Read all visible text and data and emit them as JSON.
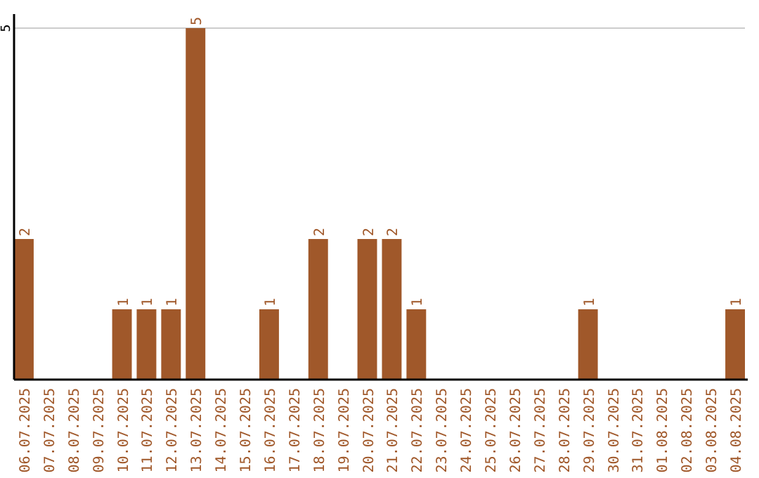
{
  "chart_data": {
    "type": "bar",
    "categories": [
      "06.07.2025",
      "07.07.2025",
      "08.07.2025",
      "09.07.2025",
      "10.07.2025",
      "11.07.2025",
      "12.07.2025",
      "13.07.2025",
      "14.07.2025",
      "15.07.2025",
      "16.07.2025",
      "17.07.2025",
      "18.07.2025",
      "19.07.2025",
      "20.07.2025",
      "21.07.2025",
      "22.07.2025",
      "23.07.2025",
      "24.07.2025",
      "25.07.2025",
      "26.07.2025",
      "27.07.2025",
      "28.07.2025",
      "29.07.2025",
      "30.07.2025",
      "31.07.2025",
      "01.08.2025",
      "02.08.2025",
      "03.08.2025",
      "04.08.2025"
    ],
    "values": [
      2,
      0,
      0,
      0,
      1,
      1,
      1,
      5,
      0,
      0,
      1,
      0,
      2,
      0,
      2,
      2,
      1,
      0,
      0,
      0,
      0,
      0,
      0,
      1,
      0,
      0,
      0,
      0,
      0,
      1
    ],
    "value_labels": [
      "2",
      null,
      null,
      null,
      "1",
      "1",
      "1",
      "5",
      null,
      null,
      "1",
      null,
      "2",
      null,
      "2",
      "2",
      "1",
      null,
      null,
      null,
      null,
      null,
      null,
      "1",
      null,
      null,
      null,
      null,
      null,
      "1"
    ],
    "color": "#a0582a",
    "ylim": [
      0,
      5.2
    ],
    "yticks": [
      5
    ],
    "grid": "y"
  }
}
